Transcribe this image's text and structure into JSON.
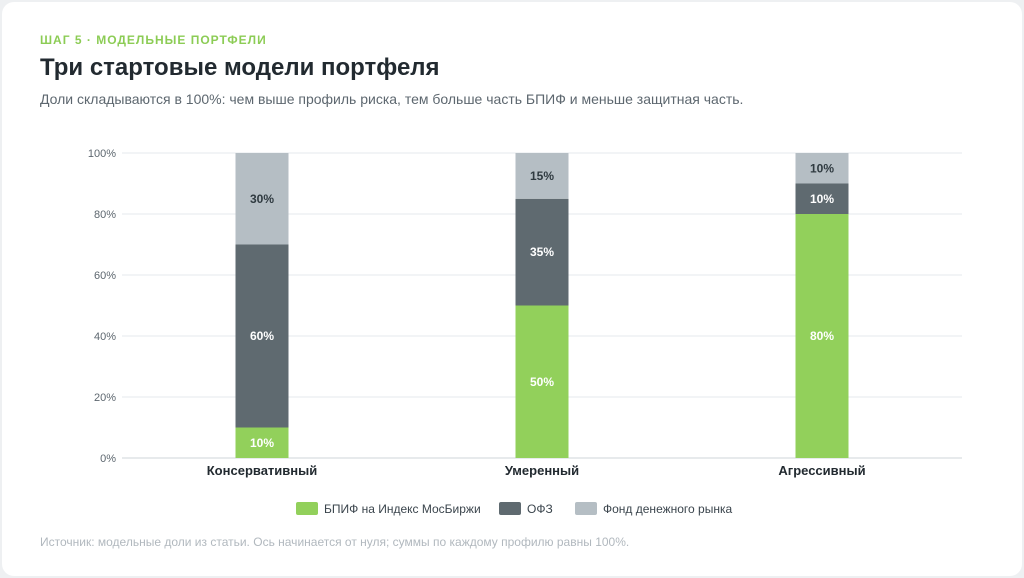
{
  "header": {
    "eyebrow": "ШАГ 5 · МОДЕЛЬНЫЕ ПОРТФЕЛИ",
    "title": "Три стартовые модели портфеля",
    "subtitle": "Доли складываются в 100%: чем выше профиль риска, тем больше часть БПИФ и меньше защитная часть."
  },
  "footer": {
    "source": "Источник: модельные доли из статьи. Ось начинается от нуля; суммы по каждому профилю равны 100%."
  },
  "chart_data": {
    "type": "bar",
    "stacked": true,
    "categories": [
      "Консервативный",
      "Умеренный",
      "Агрессивный"
    ],
    "series": [
      {
        "name": "БПИФ на Индекс МосБиржи",
        "values": [
          10,
          50,
          80
        ],
        "color": "#92d05b",
        "label_color": "#ffffff"
      },
      {
        "name": "ОФЗ",
        "values": [
          60,
          35,
          10
        ],
        "color": "#5f6a70",
        "label_color": "#ffffff"
      },
      {
        "name": "Фонд денежного рынка",
        "values": [
          30,
          15,
          10
        ],
        "color": "#b5bec4",
        "label_color": "#2f3a40"
      }
    ],
    "ylim": [
      0,
      100
    ],
    "yticks": [
      "0%",
      "20%",
      "40%",
      "60%",
      "80%",
      "100%"
    ],
    "ytick_values": [
      0,
      20,
      40,
      60,
      80,
      100
    ],
    "grid": true,
    "legend_position": "bottom-center",
    "value_suffix": "%"
  }
}
